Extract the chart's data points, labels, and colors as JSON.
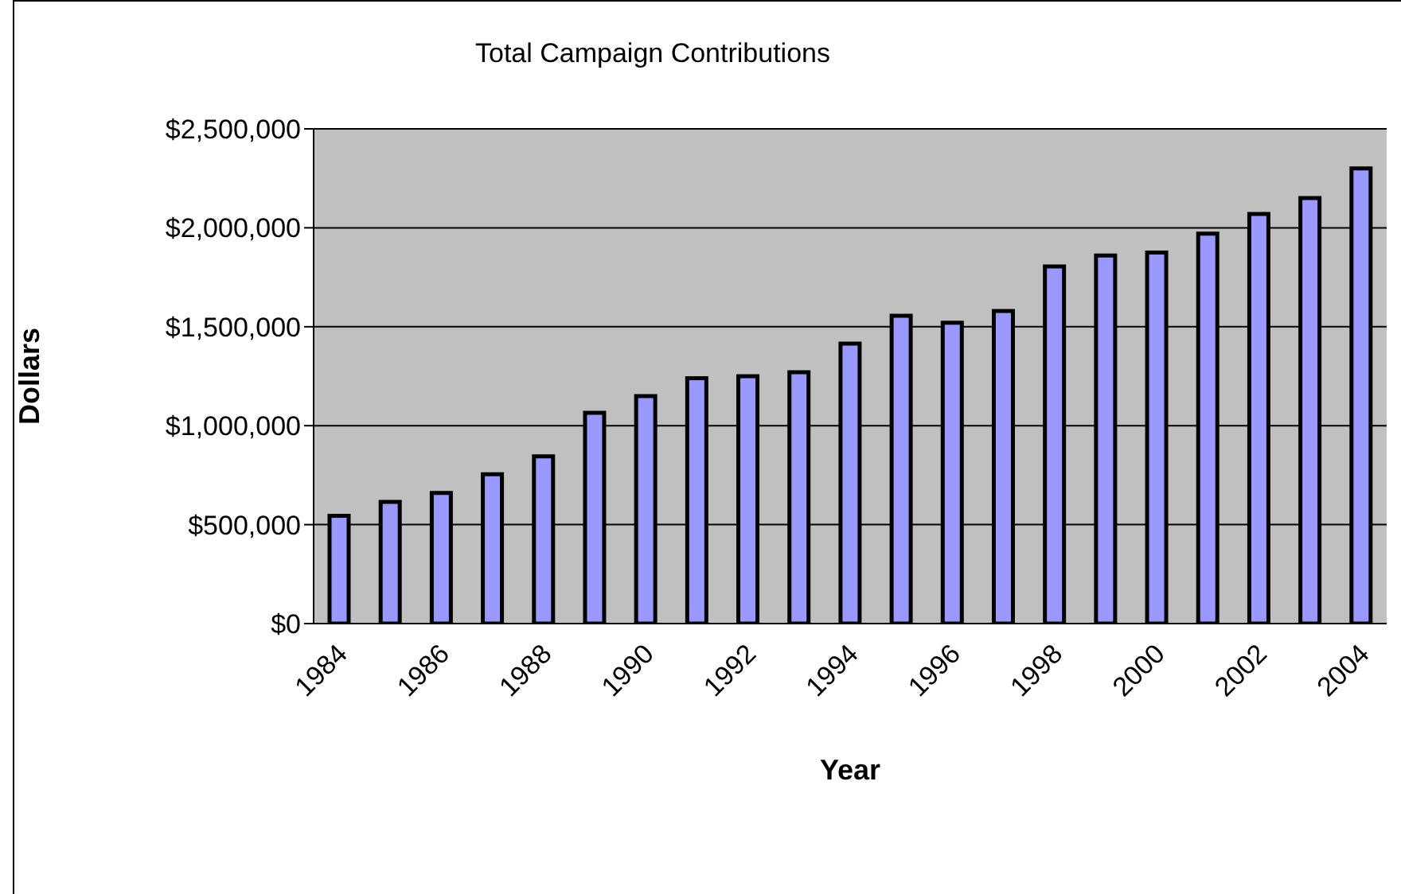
{
  "chart_data": {
    "type": "bar",
    "title": "Total Campaign Contributions",
    "xlabel": "Year",
    "ylabel": "Dollars",
    "categories": [
      "1984",
      null,
      "1986",
      null,
      "1988",
      null,
      "1990",
      null,
      "1992",
      null,
      "1994",
      null,
      "1996",
      null,
      "1998",
      null,
      "2000",
      null,
      "2002",
      null,
      "2004"
    ],
    "values": [
      545000,
      615000,
      660000,
      755000,
      845000,
      1065000,
      1150000,
      1240000,
      1250000,
      1270000,
      1415000,
      1555000,
      1520000,
      1580000,
      1805000,
      1860000,
      1875000,
      1970000,
      2070000,
      2150000,
      2300000
    ],
    "color": "#9999ff",
    "ylim": [
      0,
      2500000
    ],
    "yticks": [
      {
        "value": 0,
        "label": "$0"
      },
      {
        "value": 500000,
        "label": "$500,000"
      },
      {
        "value": 1000000,
        "label": "$1,000,000"
      },
      {
        "value": 1500000,
        "label": "$1,500,000"
      },
      {
        "value": 2000000,
        "label": "$2,000,000"
      },
      {
        "value": 2500000,
        "label": "$2,500,000"
      }
    ],
    "grid": "y"
  }
}
